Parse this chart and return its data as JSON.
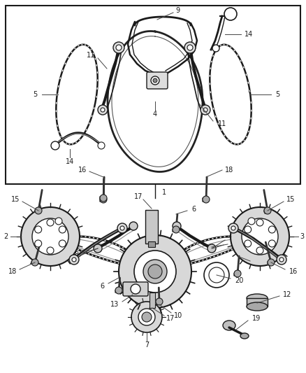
{
  "figure_width": 4.38,
  "figure_height": 5.33,
  "dpi": 100,
  "bg_color": "#ffffff",
  "lc": "#1a1a1a",
  "gray1": "#555555",
  "gray2": "#888888",
  "gray3": "#cccccc",
  "label_fs": 7.0
}
